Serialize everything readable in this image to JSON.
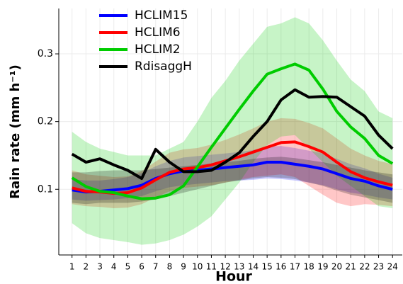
{
  "chart_data": {
    "type": "line",
    "x_label": "Hour",
    "y_label": "Rain rate  (mm h⁻¹)",
    "x": [
      1,
      2,
      3,
      4,
      5,
      6,
      7,
      8,
      9,
      10,
      11,
      12,
      13,
      14,
      15,
      16,
      17,
      18,
      19,
      20,
      21,
      22,
      23,
      24
    ],
    "xlim": [
      0.05,
      24.7
    ],
    "xticks": [
      1,
      2,
      3,
      4,
      5,
      6,
      7,
      8,
      9,
      10,
      11,
      12,
      13,
      14,
      15,
      16,
      17,
      18,
      19,
      20,
      21,
      22,
      23,
      24
    ],
    "ylim": [
      0.003,
      0.367
    ],
    "yticks": [
      0.1,
      0.2,
      0.3
    ],
    "grid": true,
    "legend": "top-left",
    "series": [
      {
        "name": "HCLIM15",
        "color": "#0000ff",
        "values": [
          0.099,
          0.096,
          0.097,
          0.099,
          0.101,
          0.106,
          0.116,
          0.123,
          0.127,
          0.128,
          0.13,
          0.132,
          0.134,
          0.136,
          0.14,
          0.14,
          0.137,
          0.134,
          0.13,
          0.123,
          0.116,
          0.112,
          0.105,
          0.1
        ],
        "lower": [
          0.085,
          0.083,
          0.084,
          0.085,
          0.087,
          0.09,
          0.097,
          0.103,
          0.106,
          0.108,
          0.11,
          0.112,
          0.113,
          0.114,
          0.116,
          0.115,
          0.113,
          0.11,
          0.106,
          0.1,
          0.095,
          0.092,
          0.088,
          0.085
        ],
        "upper": [
          0.115,
          0.113,
          0.113,
          0.115,
          0.118,
          0.124,
          0.134,
          0.142,
          0.147,
          0.149,
          0.151,
          0.153,
          0.155,
          0.158,
          0.163,
          0.164,
          0.161,
          0.157,
          0.153,
          0.145,
          0.137,
          0.131,
          0.123,
          0.117
        ]
      },
      {
        "name": "HCLIM6",
        "color": "#ff0000",
        "values": [
          0.102,
          0.097,
          0.096,
          0.094,
          0.095,
          0.102,
          0.114,
          0.125,
          0.13,
          0.132,
          0.136,
          0.142,
          0.148,
          0.155,
          0.162,
          0.169,
          0.17,
          0.163,
          0.155,
          0.14,
          0.126,
          0.117,
          0.111,
          0.106
        ],
        "lower": [
          0.078,
          0.075,
          0.074,
          0.072,
          0.073,
          0.078,
          0.088,
          0.097,
          0.102,
          0.104,
          0.106,
          0.11,
          0.114,
          0.118,
          0.12,
          0.122,
          0.118,
          0.105,
          0.092,
          0.08,
          0.075,
          0.078,
          0.077,
          0.075
        ],
        "upper": [
          0.128,
          0.122,
          0.12,
          0.118,
          0.119,
          0.127,
          0.141,
          0.154,
          0.159,
          0.161,
          0.166,
          0.173,
          0.181,
          0.19,
          0.2,
          0.205,
          0.204,
          0.198,
          0.19,
          0.175,
          0.16,
          0.15,
          0.142,
          0.137
        ]
      },
      {
        "name": "HCLIM2",
        "color": "#00cc00",
        "values": [
          0.117,
          0.104,
          0.097,
          0.095,
          0.09,
          0.086,
          0.087,
          0.092,
          0.105,
          0.133,
          0.162,
          0.19,
          0.218,
          0.245,
          0.27,
          0.278,
          0.285,
          0.276,
          0.248,
          0.215,
          0.192,
          0.175,
          0.15,
          0.138
        ],
        "lower": [
          0.05,
          0.035,
          0.028,
          0.025,
          0.022,
          0.018,
          0.02,
          0.025,
          0.033,
          0.045,
          0.06,
          0.085,
          0.11,
          0.14,
          0.165,
          0.178,
          0.18,
          0.16,
          0.14,
          0.12,
          0.105,
          0.09,
          0.075,
          0.072
        ],
        "upper": [
          0.185,
          0.17,
          0.16,
          0.155,
          0.15,
          0.15,
          0.15,
          0.16,
          0.17,
          0.2,
          0.235,
          0.26,
          0.29,
          0.315,
          0.34,
          0.345,
          0.354,
          0.345,
          0.32,
          0.29,
          0.262,
          0.245,
          0.215,
          0.205
        ]
      },
      {
        "name": "RdisaggH",
        "color": "#000000",
        "values": [
          0.152,
          0.14,
          0.145,
          0.136,
          0.128,
          0.116,
          0.159,
          0.14,
          0.126,
          0.126,
          0.128,
          0.14,
          0.154,
          0.178,
          0.2,
          0.232,
          0.247,
          0.236,
          0.237,
          0.236,
          0.222,
          0.208,
          0.18,
          0.16
        ],
        "lower": [
          0.08,
          0.078,
          0.08,
          0.08,
          0.08,
          0.082,
          0.085,
          0.09,
          0.095,
          0.1,
          0.105,
          0.11,
          0.113,
          0.116,
          0.118,
          0.117,
          0.115,
          0.11,
          0.105,
          0.098,
          0.092,
          0.088,
          0.084,
          0.08
        ],
        "upper": [
          0.125,
          0.125,
          0.127,
          0.128,
          0.128,
          0.128,
          0.13,
          0.132,
          0.134,
          0.136,
          0.138,
          0.14,
          0.142,
          0.145,
          0.147,
          0.148,
          0.146,
          0.143,
          0.14,
          0.136,
          0.132,
          0.128,
          0.125,
          0.122
        ]
      }
    ]
  }
}
